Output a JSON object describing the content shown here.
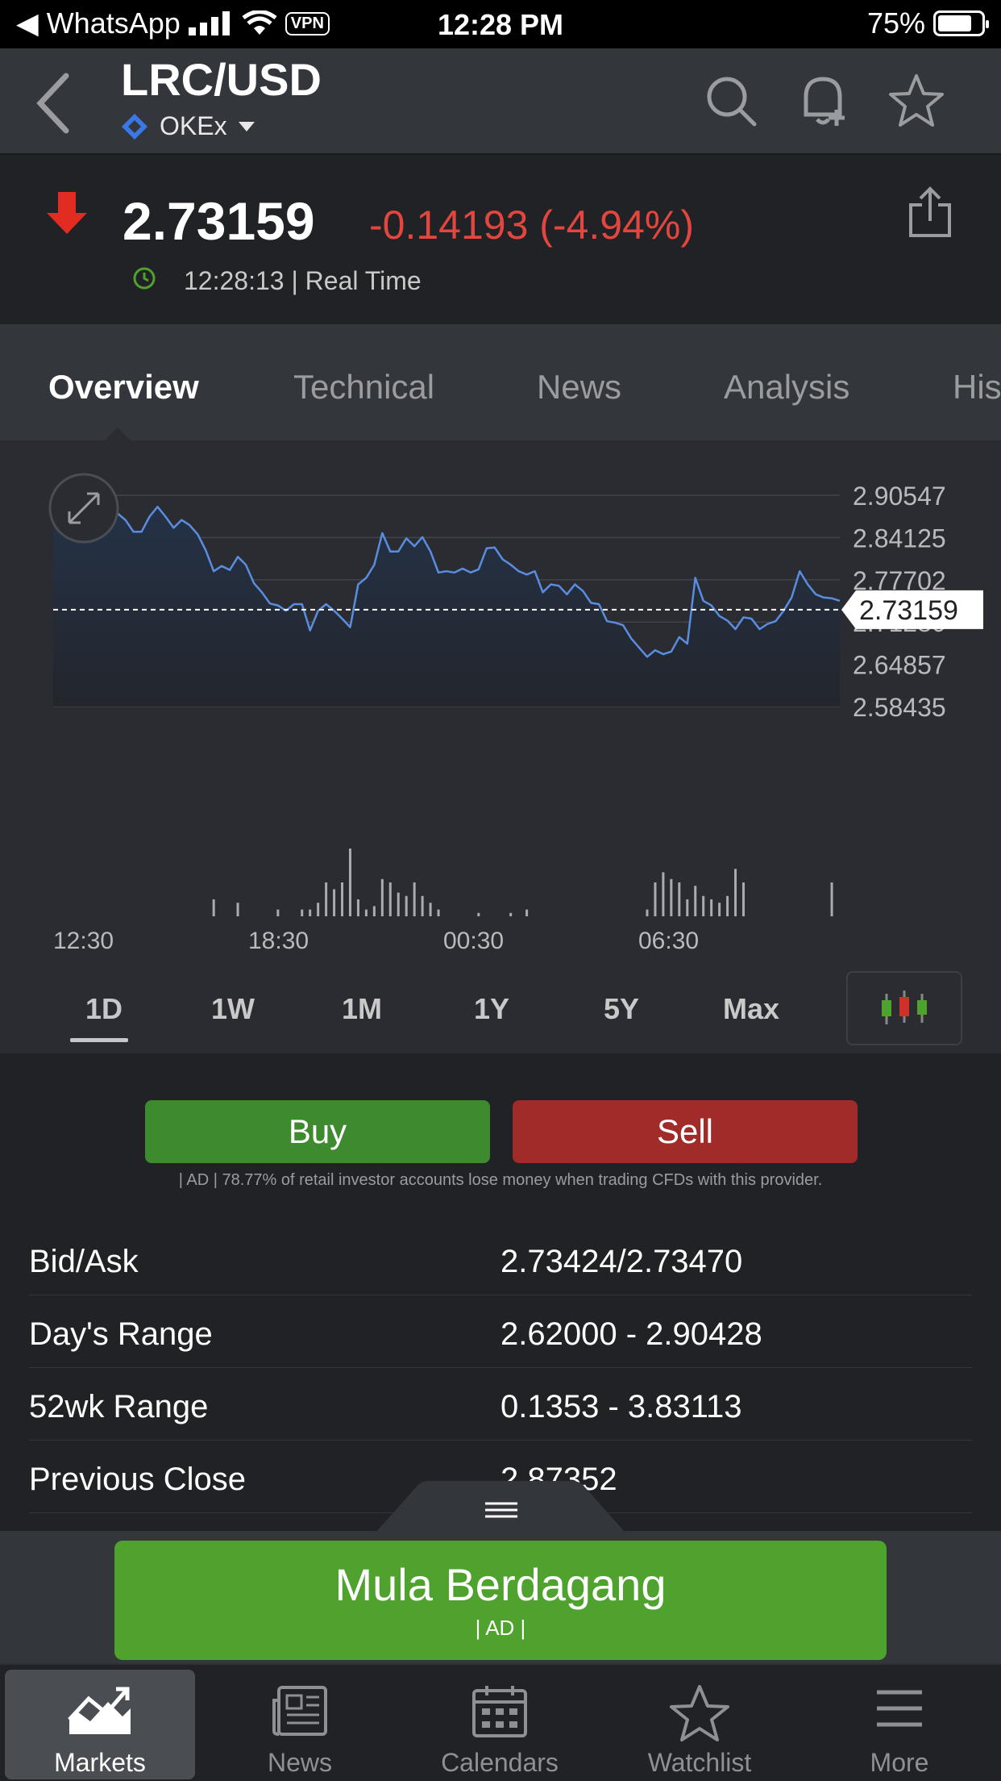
{
  "status": {
    "app": "WhatsApp",
    "vpn": "VPN",
    "time": "12:28 PM",
    "battery": "75%"
  },
  "header": {
    "pair": "LRC/USD",
    "exchange": "OKEx"
  },
  "quote": {
    "last": "2.73159",
    "change": "-0.14193 (-4.94%)",
    "time": "12:28:13 | Real Time"
  },
  "tabs": [
    "Overview",
    "Technical",
    "News",
    "Analysis",
    "His"
  ],
  "chart_data": {
    "type": "line",
    "y_ticks": [
      "2.90547",
      "2.84125",
      "2.77702",
      "2.71280",
      "2.64857",
      "2.58435"
    ],
    "x_ticks": [
      "12:30",
      "18:30",
      "00:30",
      "06:30"
    ],
    "current_label": "2.73159",
    "current_value": 2.73159,
    "ylim": [
      2.58435,
      2.90547
    ],
    "values": [
      2.885,
      2.862,
      2.868,
      2.878,
      2.872,
      2.876,
      2.888,
      2.876,
      2.878,
      2.868,
      2.85,
      2.85,
      2.873,
      2.888,
      2.873,
      2.856,
      2.868,
      2.86,
      2.846,
      2.822,
      2.79,
      2.798,
      2.792,
      2.812,
      2.8,
      2.772,
      2.758,
      2.741,
      2.738,
      2.73,
      2.74,
      2.74,
      2.7,
      2.73,
      2.74,
      2.73,
      2.718,
      2.705,
      2.77,
      2.78,
      2.8,
      2.848,
      2.82,
      2.82,
      2.84,
      2.828,
      2.842,
      2.82,
      2.788,
      2.79,
      2.788,
      2.794,
      2.788,
      2.793,
      2.825,
      2.826,
      2.808,
      2.8,
      2.79,
      2.785,
      2.79,
      2.758,
      2.77,
      2.768,
      2.755,
      2.77,
      2.76,
      2.742,
      2.74,
      2.714,
      2.712,
      2.708,
      2.688,
      2.674,
      2.66,
      2.67,
      2.664,
      2.668,
      2.69,
      2.68,
      2.78,
      2.745,
      2.738,
      2.722,
      2.715,
      2.702,
      2.72,
      2.718,
      2.702,
      2.71,
      2.714,
      2.73,
      2.75,
      2.79,
      2.77,
      2.755,
      2.75,
      2.749,
      2.745
    ],
    "volume": [
      0,
      0,
      0,
      0,
      0,
      0,
      0,
      0,
      0,
      0,
      0,
      0,
      0,
      0,
      0,
      0,
      0,
      0,
      0,
      0,
      0.25,
      0,
      0,
      0.2,
      0,
      0,
      0,
      0,
      0.1,
      0,
      0,
      0.1,
      0.1,
      0.2,
      0.5,
      0.4,
      0.5,
      1,
      0.25,
      0.1,
      0.15,
      0.55,
      0.5,
      0.35,
      0.3,
      0.5,
      0.3,
      0.2,
      0.1,
      0,
      0,
      0,
      0,
      0.05,
      0,
      0,
      0,
      0.05,
      0,
      0.1,
      0,
      0,
      0,
      0,
      0,
      0,
      0,
      0,
      0,
      0,
      0,
      0,
      0,
      0,
      0.1,
      0.5,
      0.65,
      0.55,
      0.5,
      0.25,
      0.45,
      0.3,
      0.25,
      0.2,
      0.3,
      0.7,
      0.5,
      0,
      0,
      0,
      0,
      0,
      0,
      0,
      0,
      0,
      0,
      0.5,
      0
    ]
  },
  "ranges": [
    "1D",
    "1W",
    "1M",
    "1Y",
    "5Y",
    "Max"
  ],
  "trade": {
    "buy": "Buy",
    "sell": "Sell",
    "disclaimer": "| AD | 78.77% of retail investor accounts lose money when trading CFDs with this provider."
  },
  "stats": [
    {
      "label": "Bid/Ask",
      "value": "2.73424/2.73470"
    },
    {
      "label": "Day's Range",
      "value": "2.62000 - 2.90428"
    },
    {
      "label": "52wk Range",
      "value": "0.1353 - 3.83113"
    },
    {
      "label": "Previous Close",
      "value": "2.87352"
    }
  ],
  "cta": {
    "title": "Mula Berdagang",
    "sub": "| AD |"
  },
  "tabbar": [
    "Markets",
    "News",
    "Calendars",
    "Watchlist",
    "More"
  ]
}
